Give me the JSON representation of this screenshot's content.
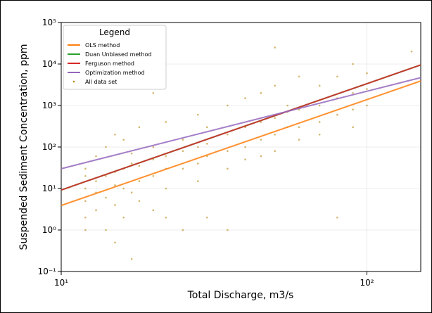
{
  "chart_data": {
    "type": "scatter",
    "xlabel": "Total Discharge, m3/s",
    "ylabel": "Suspended Sediment Concentration, ppm",
    "xscale": "log",
    "yscale": "log",
    "grid": true,
    "legend_title": "Legend",
    "legend_loc": "upper left",
    "xlim": [
      10,
      150
    ],
    "ylim": [
      0.1,
      100000
    ],
    "xticks": [
      {
        "value": 10,
        "label": "10¹"
      },
      {
        "value": 100,
        "label": "10²"
      }
    ],
    "yticks": [
      {
        "value": 0.1,
        "label": "10⁻¹"
      },
      {
        "value": 1,
        "label": "10⁰"
      },
      {
        "value": 10,
        "label": "10¹"
      },
      {
        "value": 100,
        "label": "10²"
      },
      {
        "value": 1000,
        "label": "10³"
      },
      {
        "value": 10000,
        "label": "10⁴"
      },
      {
        "value": 100000,
        "label": "10⁵"
      }
    ],
    "series": [
      {
        "name": "OLS method",
        "style": "line",
        "color": "#ff7f0e",
        "x": [
          10,
          150
        ],
        "values": [
          3.9,
          3900
        ]
      },
      {
        "name": "Duan Unbiased method",
        "style": "line",
        "color": "#2ca02c",
        "x": [
          10,
          150
        ],
        "values": [
          9.2,
          9500
        ]
      },
      {
        "name": "Ferguson method",
        "style": "line",
        "color": "#d62728",
        "x": [
          10,
          150
        ],
        "values": [
          9.2,
          9500
        ]
      },
      {
        "name": "Optimization method",
        "style": "line",
        "color": "#9467bd",
        "x": [
          10,
          150
        ],
        "values": [
          30,
          4700
        ]
      },
      {
        "name": "All data set",
        "style": "points",
        "color": "#b8860b",
        "x": [
          12,
          12,
          12,
          12,
          12,
          12,
          13,
          13,
          13,
          13,
          14,
          14,
          14,
          14,
          15,
          15,
          15,
          15,
          15,
          16,
          16,
          16,
          16,
          17,
          17,
          17,
          17,
          18,
          18,
          18,
          18,
          20,
          20,
          20,
          20,
          20,
          22,
          22,
          22,
          22,
          22,
          25,
          25,
          25,
          25,
          28,
          28,
          28,
          28,
          30,
          30,
          30,
          30,
          35,
          35,
          35,
          35,
          35,
          40,
          40,
          40,
          40,
          45,
          45,
          45,
          45,
          50,
          50,
          50,
          50,
          50,
          55,
          55,
          55,
          60,
          60,
          60,
          60,
          70,
          70,
          70,
          70,
          80,
          80,
          80,
          80,
          90,
          90,
          90,
          90,
          100,
          100,
          100,
          140
        ],
        "values": [
          10,
          20,
          5,
          2,
          1,
          30,
          15,
          3,
          60,
          8,
          20,
          1,
          100,
          6,
          25,
          4,
          200,
          0.5,
          12,
          30,
          2,
          10,
          150,
          40,
          0.2,
          8,
          70,
          35,
          15,
          300,
          5,
          50,
          20,
          2000,
          3,
          100,
          60,
          10,
          400,
          30,
          2,
          80,
          30,
          150,
          1,
          100,
          40,
          600,
          15,
          120,
          60,
          300,
          2,
          200,
          80,
          1000,
          30,
          1,
          300,
          100,
          1500,
          50,
          400,
          150,
          2000,
          60,
          500,
          200,
          3000,
          80,
          25000,
          700,
          300,
          1000,
          800,
          300,
          5000,
          150,
          1000,
          400,
          3000,
          200,
          1500,
          600,
          5000,
          2,
          2000,
          800,
          10000,
          300,
          2500,
          1000,
          6000,
          20000
        ]
      }
    ]
  }
}
